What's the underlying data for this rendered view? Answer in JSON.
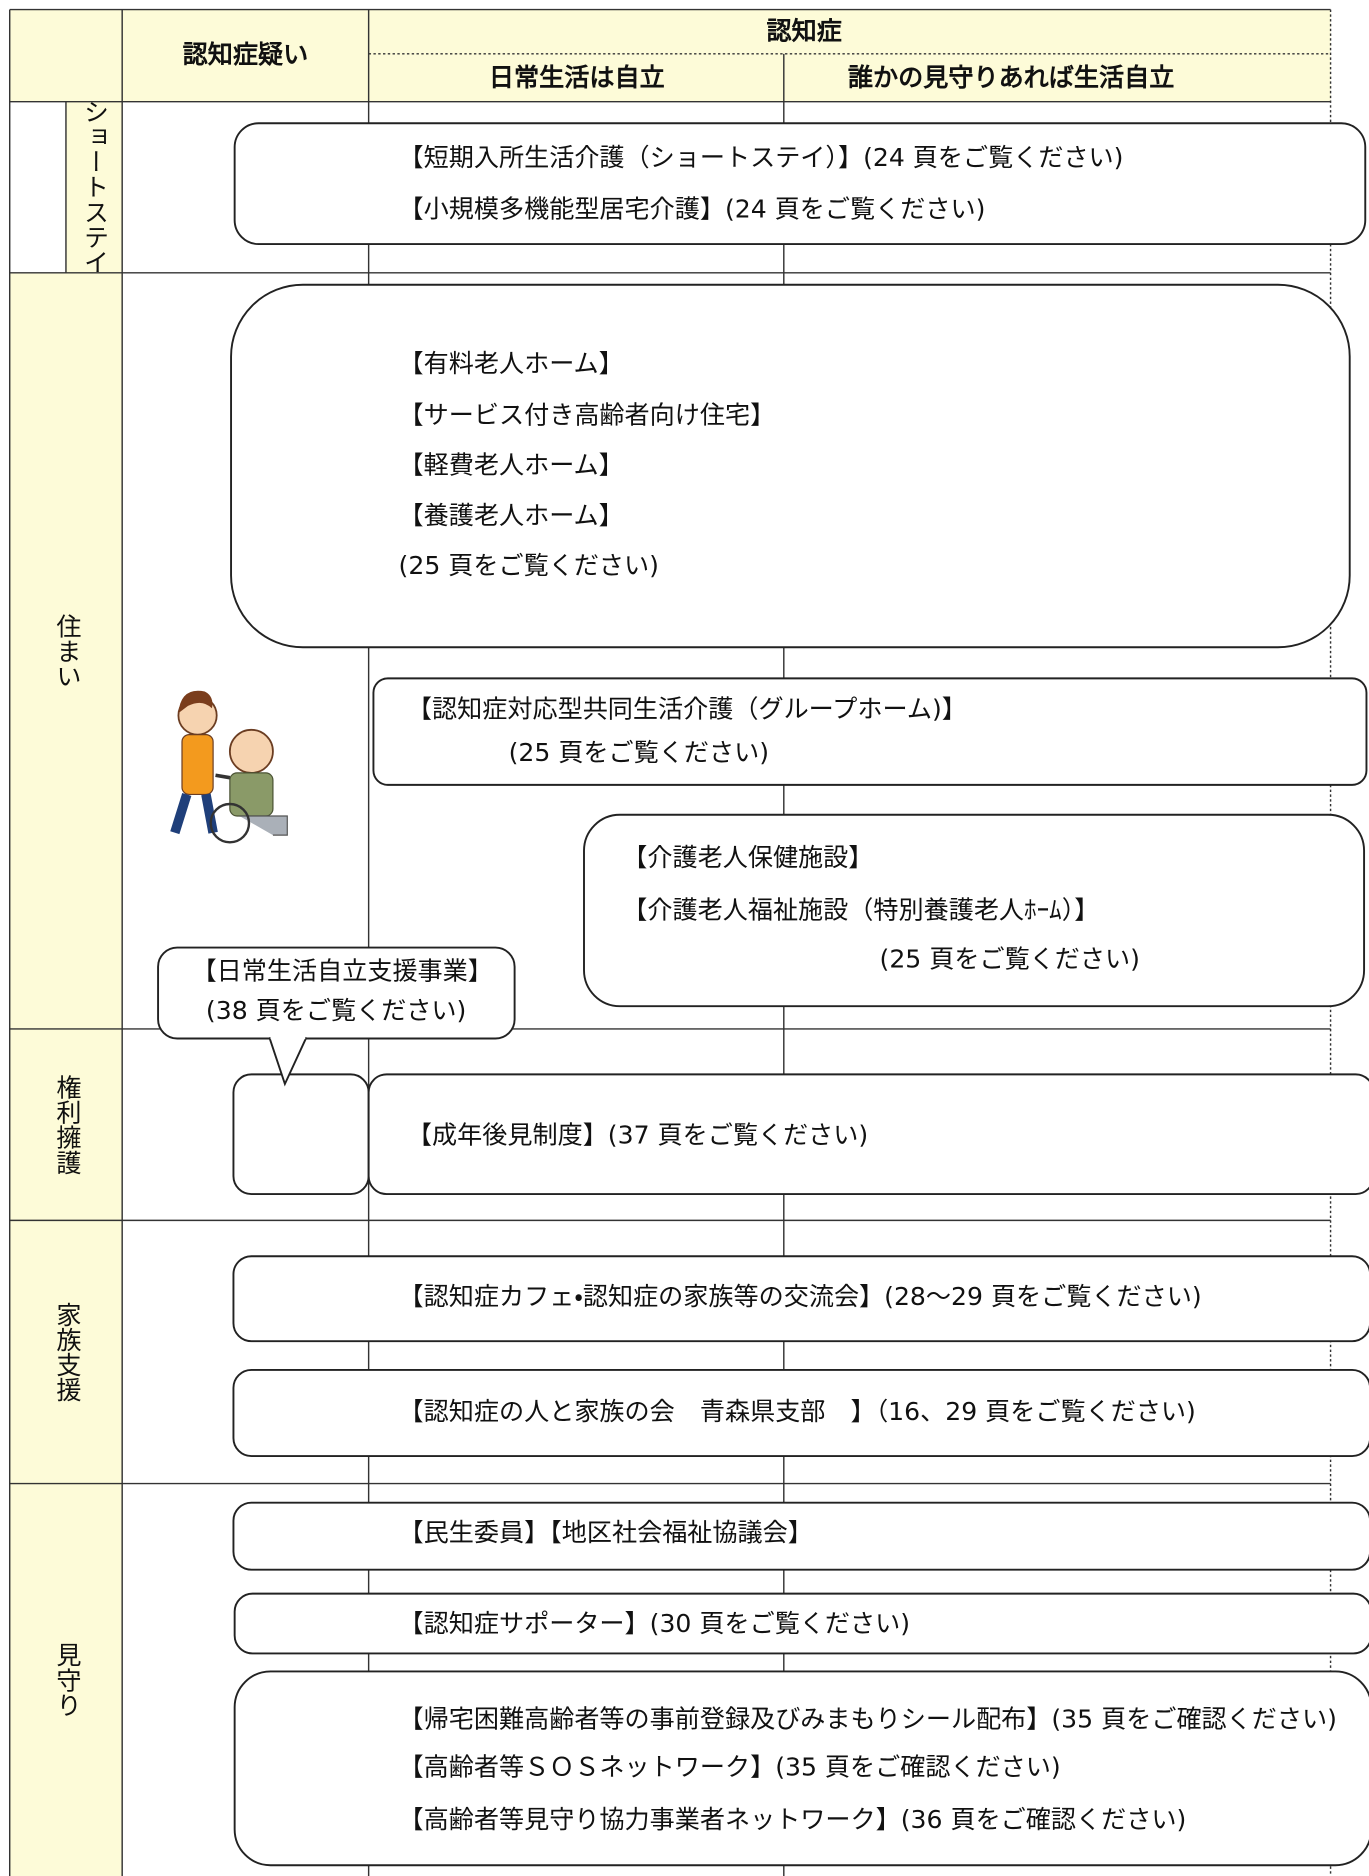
{
  "header": {
    "suspected": "認知症疑い",
    "dementia": "認知症",
    "independent": "日常生活は自立",
    "watched": "誰かの見守りあれば生活自立"
  },
  "rows": [
    {
      "label": "ショートステイ"
    },
    {
      "label": "住まい"
    },
    {
      "label": "権利擁護"
    },
    {
      "label": "家族支援"
    },
    {
      "label": "見守り"
    }
  ],
  "boxes": [
    {
      "lines": [
        "【短期入所生活介護（ショートステイ）】(24 頁をご覧ください)",
        "【小規模多機能型居宅介護】(24 頁をご覧ください)"
      ]
    },
    {
      "lines": [
        "【有料老人ホーム】",
        "【サービス付き高齢者向け住宅】",
        "【軽費老人ホーム】",
        "【養護老人ホーム】",
        "(25 頁をご覧ください)"
      ]
    },
    {
      "lines": [
        "【認知症対応型共同生活介護（グループホーム)】",
        "(25 頁をご覧ください)"
      ]
    },
    {
      "lines": [
        "【介護老人保健施設】",
        "【介護老人福祉施設（特別養護老人ﾎｰﾑ）】",
        "(25 頁をご覧ください)"
      ]
    },
    {
      "lines": [
        "【日常生活自立支援事業】",
        "(38 頁をご覧ください)"
      ]
    },
    {
      "lines": [
        "【成年後見制度】(37 頁をご覧ください)"
      ]
    },
    {
      "lines": [
        "【認知症カフェ・認知症の家族等の交流会】(28～29 頁をご覧ください)"
      ]
    },
    {
      "lines": [
        "【認知症の人と家族の会　青森県支部　】（16、29 頁をご覧ください)"
      ]
    },
    {
      "lines": [
        "【民生委員】【地区社会福祉協議会】"
      ]
    },
    {
      "lines": [
        "【認知症サポーター】(30 頁をご覧ください)"
      ]
    },
    {
      "lines": [
        "【帰宅困難高齢者等の事前登録及びみまもりシール配布】(35 頁をご確認ください)",
        "【高齢者等ＳＯＳネットワーク】(35 頁をご確認ください)",
        "【高齢者等見守り協力事業者ネットワーク】(36 頁をご確認ください)"
      ]
    }
  ]
}
